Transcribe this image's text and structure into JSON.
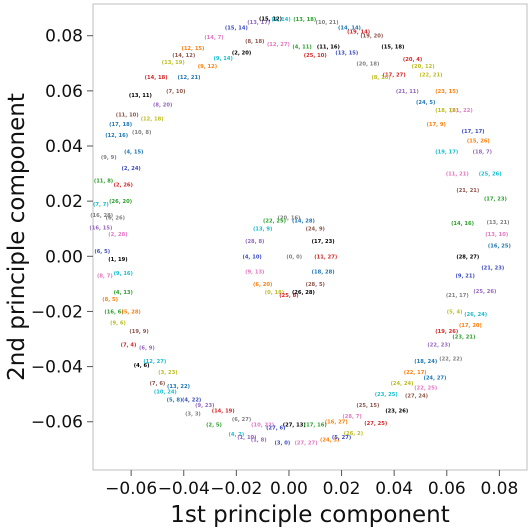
{
  "chart_data": {
    "type": "scatter",
    "xlabel": "1st principle component",
    "ylabel": "2nd principle component",
    "xlim": [
      -0.0745,
      0.0905
    ],
    "ylim": [
      -0.0775,
      0.0915
    ],
    "grid": false,
    "x_ticks": [
      "−0.06",
      "−0.04",
      "−0.02",
      "0.00",
      "0.02",
      "0.04",
      "0.06",
      "0.08"
    ],
    "y_ticks": [
      "−0.06",
      "−0.04",
      "−0.02",
      "0.00",
      "0.02",
      "0.04",
      "0.06",
      "0.08"
    ],
    "x_tick_values": [
      -0.06,
      -0.04,
      -0.02,
      0.0,
      0.02,
      0.04,
      0.06,
      0.08
    ],
    "y_tick_values": [
      -0.06,
      -0.04,
      -0.02,
      0.0,
      0.02,
      0.04,
      0.06,
      0.08
    ],
    "palette": [
      "#1f77b4",
      "#ff7f0e",
      "#2ca02c",
      "#d62728",
      "#9467bd",
      "#8c564b",
      "#e377c2",
      "#7f7f7f",
      "#bcbd22",
      "#17becf",
      "#000000",
      "#3b4cc0"
    ],
    "series": [
      {
        "ring": "outer",
        "points": [
          {
            "x": 0.08,
            "y": 0.004,
            "label": "(16, 25)"
          },
          {
            "x": 0.0795,
            "y": 0.0125,
            "label": "(13, 21)"
          },
          {
            "x": 0.0785,
            "y": 0.021,
            "label": "(17, 23)"
          },
          {
            "x": 0.0765,
            "y": 0.03,
            "label": "(25, 26)"
          },
          {
            "x": 0.0735,
            "y": 0.038,
            "label": "(18, 7)"
          },
          {
            "x": 0.07,
            "y": 0.0455,
            "label": "(17, 17)"
          },
          {
            "x": 0.0655,
            "y": 0.053,
            "label": "(21, 22)"
          },
          {
            "x": 0.06,
            "y": 0.06,
            "label": "(23, 15)"
          },
          {
            "x": 0.054,
            "y": 0.066,
            "label": "(22, 21)"
          },
          {
            "x": 0.047,
            "y": 0.0715,
            "label": "(20, 4)"
          },
          {
            "x": 0.0395,
            "y": 0.076,
            "label": "(15, 18)"
          },
          {
            "x": 0.0315,
            "y": 0.08,
            "label": "(19, 20)"
          },
          {
            "x": 0.023,
            "y": 0.083,
            "label": "(14, 14)"
          },
          {
            "x": 0.0145,
            "y": 0.085,
            "label": "(10, 21)"
          },
          {
            "x": 0.006,
            "y": 0.086,
            "label": "(13, 18)"
          },
          {
            "x": -0.003,
            "y": 0.086,
            "label": "(3, 14)"
          },
          {
            "x": -0.0115,
            "y": 0.085,
            "label": "(13, 17)"
          },
          {
            "x": -0.02,
            "y": 0.083,
            "label": "(15, 14)"
          },
          {
            "x": -0.0285,
            "y": 0.0795,
            "label": "(14, 7)"
          },
          {
            "x": -0.0365,
            "y": 0.0755,
            "label": "(12, 15)"
          },
          {
            "x": -0.044,
            "y": 0.0705,
            "label": "(13, 19)"
          },
          {
            "x": -0.0505,
            "y": 0.065,
            "label": "(14, 18)"
          },
          {
            "x": -0.0565,
            "y": 0.0585,
            "label": "(13, 11)"
          },
          {
            "x": -0.0615,
            "y": 0.0515,
            "label": "(11, 10)"
          },
          {
            "x": -0.0655,
            "y": 0.044,
            "label": "(12, 16)"
          },
          {
            "x": -0.0685,
            "y": 0.036,
            "label": "(9, 9)"
          },
          {
            "x": -0.0705,
            "y": 0.0275,
            "label": "(11, 8)"
          },
          {
            "x": -0.0715,
            "y": 0.019,
            "label": "(7, 7)"
          },
          {
            "x": -0.0715,
            "y": 0.0105,
            "label": "(16, 15)"
          },
          {
            "x": -0.071,
            "y": 0.002,
            "label": "(6, 5)"
          },
          {
            "x": -0.07,
            "y": -0.007,
            "label": "(8, 7)"
          },
          {
            "x": -0.068,
            "y": -0.0155,
            "label": "(8, 5)"
          },
          {
            "x": -0.065,
            "y": -0.024,
            "label": "(9, 6)"
          },
          {
            "x": -0.061,
            "y": -0.032,
            "label": "(7, 4)"
          },
          {
            "x": -0.056,
            "y": -0.0395,
            "label": "(4, 6)"
          },
          {
            "x": -0.05,
            "y": -0.046,
            "label": "(7, 6)"
          },
          {
            "x": -0.0435,
            "y": -0.052,
            "label": "(5, 8)"
          },
          {
            "x": -0.0365,
            "y": -0.057,
            "label": "(3, 3)"
          },
          {
            "x": -0.0285,
            "y": -0.061,
            "label": "(2, 5)"
          },
          {
            "x": -0.02,
            "y": -0.0645,
            "label": "(4, 2)"
          },
          {
            "x": -0.0115,
            "y": -0.0665,
            "label": "(1, 8)"
          },
          {
            "x": -0.0025,
            "y": -0.0675,
            "label": "(3, 0)"
          },
          {
            "x": 0.0065,
            "y": -0.0675,
            "label": "(27, 27)"
          },
          {
            "x": 0.0155,
            "y": -0.0665,
            "label": "(24, 3)"
          },
          {
            "x": 0.0245,
            "y": -0.064,
            "label": "(26, 2)"
          },
          {
            "x": 0.033,
            "y": -0.0605,
            "label": "(27, 25)"
          },
          {
            "x": 0.041,
            "y": -0.056,
            "label": "(23, 26)"
          },
          {
            "x": 0.0485,
            "y": -0.0505,
            "label": "(27, 24)"
          },
          {
            "x": 0.0555,
            "y": -0.044,
            "label": "(24, 27)"
          },
          {
            "x": 0.0615,
            "y": -0.037,
            "label": "(22, 22)"
          },
          {
            "x": 0.0665,
            "y": -0.029,
            "label": "(23, 21)"
          },
          {
            "x": 0.071,
            "y": -0.021,
            "label": "(26, 24)"
          },
          {
            "x": 0.0745,
            "y": -0.0125,
            "label": "(25, 26)"
          },
          {
            "x": 0.0775,
            "y": -0.004,
            "label": "(21, 23)"
          },
          {
            "x": 0.079,
            "y": 0.008,
            "label": "(13, 10)"
          },
          {
            "x": 0.072,
            "y": 0.042,
            "label": "(15, 26)"
          },
          {
            "x": 0.051,
            "y": 0.069,
            "label": "(20, 12)"
          },
          {
            "x": 0.0265,
            "y": 0.0815,
            "label": "(19, 14)"
          },
          {
            "x": -0.007,
            "y": 0.0862,
            "label": "(15, 12)"
          },
          {
            "x": -0.04,
            "y": 0.073,
            "label": "(14, 12)"
          },
          {
            "x": -0.064,
            "y": 0.048,
            "label": "(17, 18)"
          },
          {
            "x": -0.0712,
            "y": 0.015,
            "label": "(16, 28)"
          },
          {
            "x": -0.0665,
            "y": -0.02,
            "label": "(16, 6)"
          },
          {
            "x": -0.047,
            "y": -0.049,
            "label": "(10, 24)"
          },
          {
            "x": -0.016,
            "y": -0.0655,
            "label": "(1, 10)"
          },
          {
            "x": 0.02,
            "y": -0.0655,
            "label": "(5, 27)"
          },
          {
            "x": 0.052,
            "y": -0.0475,
            "label": "(22, 25)"
          },
          {
            "x": 0.069,
            "y": -0.025,
            "label": "(17, 20)"
          },
          {
            "x": 0.06,
            "y": 0.053,
            "label": "(18, 16)"
          },
          {
            "x": 0.04,
            "y": 0.066,
            "label": "(17, 27)"
          },
          {
            "x": 0.015,
            "y": 0.076,
            "label": "(11, 16)"
          },
          {
            "x": -0.013,
            "y": 0.078,
            "label": "(8, 18)"
          },
          {
            "x": -0.038,
            "y": 0.065,
            "label": "(12, 21)"
          },
          {
            "x": -0.056,
            "y": 0.045,
            "label": "(10, 8)"
          },
          {
            "x": -0.064,
            "y": 0.02,
            "label": "(26, 20)"
          },
          {
            "x": -0.063,
            "y": -0.006,
            "label": "(9, 16)"
          },
          {
            "x": -0.054,
            "y": -0.033,
            "label": "(6, 9)"
          },
          {
            "x": -0.037,
            "y": -0.052,
            "label": "(4, 22)"
          },
          {
            "x": -0.01,
            "y": -0.061,
            "label": "(10, 22)"
          },
          {
            "x": 0.018,
            "y": -0.06,
            "label": "(16, 27)"
          },
          {
            "x": 0.043,
            "y": -0.046,
            "label": "(24, 24)"
          },
          {
            "x": 0.06,
            "y": -0.027,
            "label": "(19, 26)"
          },
          {
            "x": 0.068,
            "y": 0.0,
            "label": "(28, 27)"
          },
          {
            "x": 0.068,
            "y": 0.024,
            "label": "(21, 21)"
          },
          {
            "x": 0.052,
            "y": 0.056,
            "label": "(24, 5)"
          },
          {
            "x": 0.03,
            "y": 0.07,
            "label": "(20, 18)"
          },
          {
            "x": 0.005,
            "y": 0.076,
            "label": "(4, 11)"
          },
          {
            "x": -0.025,
            "y": 0.072,
            "label": "(9, 14)"
          },
          {
            "x": -0.048,
            "y": 0.055,
            "label": "(8, 20)"
          },
          {
            "x": -0.06,
            "y": 0.032,
            "label": "(2, 24)"
          },
          {
            "x": -0.065,
            "y": 0.008,
            "label": "(2, 28)"
          },
          {
            "x": -0.06,
            "y": -0.02,
            "label": "(5, 28)"
          },
          {
            "x": -0.046,
            "y": -0.042,
            "label": "(3, 23)"
          },
          {
            "x": -0.025,
            "y": -0.056,
            "label": "(14, 19)"
          },
          {
            "x": 0.002,
            "y": -0.061,
            "label": "(27, 13)"
          },
          {
            "x": 0.03,
            "y": -0.054,
            "label": "(25, 15)"
          },
          {
            "x": 0.052,
            "y": -0.038,
            "label": "(18, 24)"
          },
          {
            "x": 0.064,
            "y": -0.014,
            "label": "(21, 17)"
          },
          {
            "x": 0.066,
            "y": 0.012,
            "label": "(14, 16)"
          },
          {
            "x": 0.06,
            "y": 0.038,
            "label": "(19, 17)"
          },
          {
            "x": 0.045,
            "y": 0.06,
            "label": "(21, 11)"
          },
          {
            "x": 0.022,
            "y": 0.074,
            "label": "(13, 15)"
          },
          {
            "x": -0.004,
            "y": 0.077,
            "label": "(12, 27)"
          },
          {
            "x": -0.031,
            "y": 0.069,
            "label": "(9, 12)"
          },
          {
            "x": -0.052,
            "y": 0.05,
            "label": "(12, 18)"
          },
          {
            "x": -0.063,
            "y": 0.026,
            "label": "(2, 26)"
          },
          {
            "x": -0.065,
            "y": -0.001,
            "label": "(1, 19)"
          },
          {
            "x": -0.057,
            "y": -0.027,
            "label": "(19, 9)"
          },
          {
            "x": -0.042,
            "y": -0.047,
            "label": "(13, 22)"
          },
          {
            "x": -0.018,
            "y": -0.059,
            "label": "(6, 27)"
          },
          {
            "x": 0.01,
            "y": -0.061,
            "label": "(17, 16)"
          },
          {
            "x": 0.037,
            "y": -0.05,
            "label": "(23, 25)"
          },
          {
            "x": 0.057,
            "y": -0.032,
            "label": "(22, 23)"
          },
          {
            "x": 0.067,
            "y": -0.007,
            "label": "(9, 21)"
          },
          {
            "x": 0.064,
            "y": 0.03,
            "label": "(11, 21)"
          },
          {
            "x": 0.056,
            "y": 0.048,
            "label": "(17, 9)"
          },
          {
            "x": 0.035,
            "y": 0.065,
            "label": "(8, 10)"
          },
          {
            "x": 0.01,
            "y": 0.073,
            "label": "(25, 10)"
          },
          {
            "x": -0.018,
            "y": 0.074,
            "label": "(2, 20)"
          },
          {
            "x": -0.043,
            "y": 0.06,
            "label": "(7, 10)"
          },
          {
            "x": -0.059,
            "y": 0.038,
            "label": "(4, 15)"
          },
          {
            "x": -0.066,
            "y": 0.014,
            "label": "(6, 26)"
          },
          {
            "x": -0.063,
            "y": -0.013,
            "label": "(4, 13)"
          },
          {
            "x": -0.051,
            "y": -0.038,
            "label": "(12, 27)"
          },
          {
            "x": -0.032,
            "y": -0.054,
            "label": "(9, 23)"
          },
          {
            "x": -0.005,
            "y": -0.062,
            "label": "(27, 6)"
          },
          {
            "x": 0.024,
            "y": -0.058,
            "label": "(28, 7)"
          },
          {
            "x": 0.048,
            "y": -0.042,
            "label": "(22, 17)"
          },
          {
            "x": 0.063,
            "y": -0.02,
            "label": "(5, 4)"
          }
        ]
      },
      {
        "ring": "inner",
        "points": [
          {
            "x": 0.014,
            "y": 0.0,
            "label": "(11, 27)"
          },
          {
            "x": 0.013,
            "y": 0.0055,
            "label": "(17, 23)"
          },
          {
            "x": 0.01,
            "y": 0.01,
            "label": "(24, 9)"
          },
          {
            "x": 0.0055,
            "y": 0.013,
            "label": "(14, 28)"
          },
          {
            "x": 0.0,
            "y": 0.014,
            "label": "(20, 16)"
          },
          {
            "x": -0.0055,
            "y": 0.013,
            "label": "(22, 25)"
          },
          {
            "x": -0.01,
            "y": 0.01,
            "label": "(13, 9)"
          },
          {
            "x": -0.013,
            "y": 0.0055,
            "label": "(28, 8)"
          },
          {
            "x": -0.014,
            "y": 0.0,
            "label": "(4, 10)"
          },
          {
            "x": -0.013,
            "y": -0.0055,
            "label": "(9, 13)"
          },
          {
            "x": -0.01,
            "y": -0.01,
            "label": "(6, 20)"
          },
          {
            "x": -0.0055,
            "y": -0.013,
            "label": "(0, 18)"
          },
          {
            "x": 0.0,
            "y": -0.014,
            "label": "(25, 8)"
          },
          {
            "x": 0.0055,
            "y": -0.013,
            "label": "(26, 28)"
          },
          {
            "x": 0.01,
            "y": -0.01,
            "label": "(28, 5)"
          },
          {
            "x": 0.013,
            "y": -0.0055,
            "label": "(18, 28)"
          },
          {
            "x": 0.002,
            "y": 0.0,
            "label": "(0, 0)"
          }
        ]
      }
    ]
  }
}
